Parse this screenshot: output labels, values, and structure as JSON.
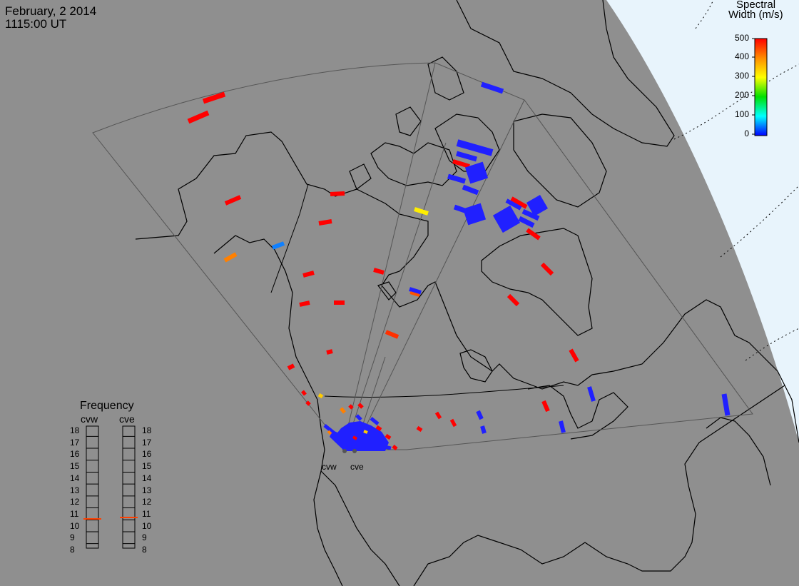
{
  "header": {
    "date": "February, 2 2014",
    "time": "1115:00 UT"
  },
  "colorbar": {
    "title_line1": "Spectral",
    "title_line2": "Width (m/s)",
    "ticks": [
      "500",
      "400",
      "300",
      "200",
      "100",
      "0"
    ],
    "colors": [
      "#ff0000",
      "#ff8c00",
      "#ffff00",
      "#00e000",
      "#00ffff",
      "#0000ff"
    ]
  },
  "frequency": {
    "title": "Frequency",
    "radar_left": "cvw",
    "radar_right": "cve",
    "scale": [
      "18",
      "17",
      "16",
      "15",
      "14",
      "13",
      "12",
      "11",
      "10",
      "9",
      "8"
    ],
    "cvw_value_mhz": 10.6,
    "cve_value_mhz": 10.8
  },
  "sites": {
    "left": "cvw",
    "right": "cve"
  },
  "colors": {
    "land": "#8f8f8f",
    "ocean_outside": "#e8f4fc",
    "high": "#ff0000",
    "low": "#1a1aff",
    "mid": "#ff8000",
    "yellow": "#ffee00",
    "cyan": "#0088ff"
  }
}
